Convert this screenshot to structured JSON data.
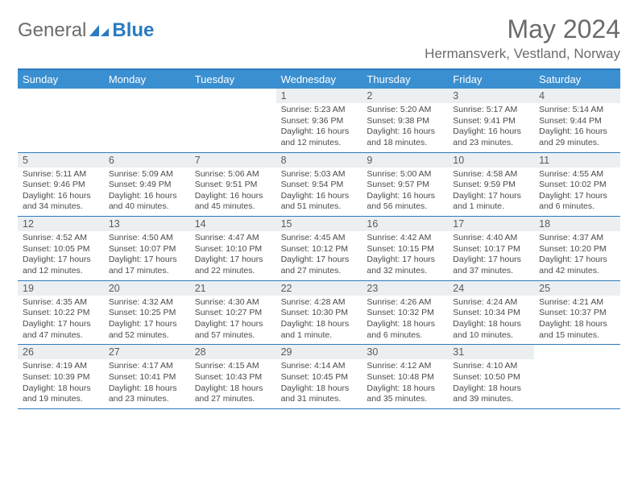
{
  "brand": {
    "text1": "General",
    "text2": "Blue"
  },
  "title": "May 2024",
  "location": "Hermansverk, Vestland, Norway",
  "colors": {
    "header_bg": "#3a8fd0",
    "border": "#2a7bbf",
    "daynum_bg": "#eceff1",
    "text_dark": "#4a4a4a",
    "text_gray": "#6b6b6b"
  },
  "days_of_week": [
    "Sunday",
    "Monday",
    "Tuesday",
    "Wednesday",
    "Thursday",
    "Friday",
    "Saturday"
  ],
  "weeks": [
    [
      null,
      null,
      null,
      {
        "n": "1",
        "sr": "5:23 AM",
        "ss": "9:36 PM",
        "dl": "16 hours and 12 minutes."
      },
      {
        "n": "2",
        "sr": "5:20 AM",
        "ss": "9:38 PM",
        "dl": "16 hours and 18 minutes."
      },
      {
        "n": "3",
        "sr": "5:17 AM",
        "ss": "9:41 PM",
        "dl": "16 hours and 23 minutes."
      },
      {
        "n": "4",
        "sr": "5:14 AM",
        "ss": "9:44 PM",
        "dl": "16 hours and 29 minutes."
      }
    ],
    [
      {
        "n": "5",
        "sr": "5:11 AM",
        "ss": "9:46 PM",
        "dl": "16 hours and 34 minutes."
      },
      {
        "n": "6",
        "sr": "5:09 AM",
        "ss": "9:49 PM",
        "dl": "16 hours and 40 minutes."
      },
      {
        "n": "7",
        "sr": "5:06 AM",
        "ss": "9:51 PM",
        "dl": "16 hours and 45 minutes."
      },
      {
        "n": "8",
        "sr": "5:03 AM",
        "ss": "9:54 PM",
        "dl": "16 hours and 51 minutes."
      },
      {
        "n": "9",
        "sr": "5:00 AM",
        "ss": "9:57 PM",
        "dl": "16 hours and 56 minutes."
      },
      {
        "n": "10",
        "sr": "4:58 AM",
        "ss": "9:59 PM",
        "dl": "17 hours and 1 minute."
      },
      {
        "n": "11",
        "sr": "4:55 AM",
        "ss": "10:02 PM",
        "dl": "17 hours and 6 minutes."
      }
    ],
    [
      {
        "n": "12",
        "sr": "4:52 AM",
        "ss": "10:05 PM",
        "dl": "17 hours and 12 minutes."
      },
      {
        "n": "13",
        "sr": "4:50 AM",
        "ss": "10:07 PM",
        "dl": "17 hours and 17 minutes."
      },
      {
        "n": "14",
        "sr": "4:47 AM",
        "ss": "10:10 PM",
        "dl": "17 hours and 22 minutes."
      },
      {
        "n": "15",
        "sr": "4:45 AM",
        "ss": "10:12 PM",
        "dl": "17 hours and 27 minutes."
      },
      {
        "n": "16",
        "sr": "4:42 AM",
        "ss": "10:15 PM",
        "dl": "17 hours and 32 minutes."
      },
      {
        "n": "17",
        "sr": "4:40 AM",
        "ss": "10:17 PM",
        "dl": "17 hours and 37 minutes."
      },
      {
        "n": "18",
        "sr": "4:37 AM",
        "ss": "10:20 PM",
        "dl": "17 hours and 42 minutes."
      }
    ],
    [
      {
        "n": "19",
        "sr": "4:35 AM",
        "ss": "10:22 PM",
        "dl": "17 hours and 47 minutes."
      },
      {
        "n": "20",
        "sr": "4:32 AM",
        "ss": "10:25 PM",
        "dl": "17 hours and 52 minutes."
      },
      {
        "n": "21",
        "sr": "4:30 AM",
        "ss": "10:27 PM",
        "dl": "17 hours and 57 minutes."
      },
      {
        "n": "22",
        "sr": "4:28 AM",
        "ss": "10:30 PM",
        "dl": "18 hours and 1 minute."
      },
      {
        "n": "23",
        "sr": "4:26 AM",
        "ss": "10:32 PM",
        "dl": "18 hours and 6 minutes."
      },
      {
        "n": "24",
        "sr": "4:24 AM",
        "ss": "10:34 PM",
        "dl": "18 hours and 10 minutes."
      },
      {
        "n": "25",
        "sr": "4:21 AM",
        "ss": "10:37 PM",
        "dl": "18 hours and 15 minutes."
      }
    ],
    [
      {
        "n": "26",
        "sr": "4:19 AM",
        "ss": "10:39 PM",
        "dl": "18 hours and 19 minutes."
      },
      {
        "n": "27",
        "sr": "4:17 AM",
        "ss": "10:41 PM",
        "dl": "18 hours and 23 minutes."
      },
      {
        "n": "28",
        "sr": "4:15 AM",
        "ss": "10:43 PM",
        "dl": "18 hours and 27 minutes."
      },
      {
        "n": "29",
        "sr": "4:14 AM",
        "ss": "10:45 PM",
        "dl": "18 hours and 31 minutes."
      },
      {
        "n": "30",
        "sr": "4:12 AM",
        "ss": "10:48 PM",
        "dl": "18 hours and 35 minutes."
      },
      {
        "n": "31",
        "sr": "4:10 AM",
        "ss": "10:50 PM",
        "dl": "18 hours and 39 minutes."
      },
      null
    ]
  ],
  "labels": {
    "sunrise": "Sunrise:",
    "sunset": "Sunset:",
    "daylight": "Daylight:"
  }
}
